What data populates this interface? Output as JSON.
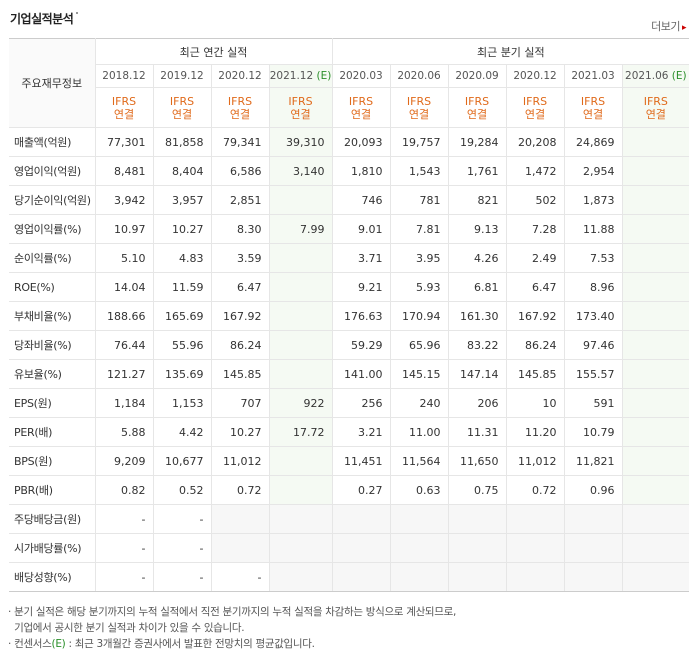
{
  "header": {
    "title": "기업실적분석",
    "more_label": "더보기"
  },
  "table": {
    "row_header_label": "주요재무정보",
    "group_annual": "최근 연간 실적",
    "group_quarter": "최근 분기 실적",
    "annual_periods": [
      "2018.12",
      "2019.12",
      "2020.12",
      "2021.12"
    ],
    "annual_est_suffix": "(E)",
    "quarter_periods": [
      "2020.03",
      "2020.06",
      "2020.09",
      "2020.12",
      "2021.03",
      "2021.06"
    ],
    "quarter_est_suffix": "(E)",
    "ifrs_top": "IFRS",
    "ifrs_bottom": "연결",
    "rows": [
      {
        "label": "매출액(억원)",
        "annual": [
          "77,301",
          "81,858",
          "79,341",
          "39,310"
        ],
        "quarter": [
          "20,093",
          "19,757",
          "19,284",
          "20,208",
          "24,869",
          ""
        ]
      },
      {
        "label": "영업이익(억원)",
        "annual": [
          "8,481",
          "8,404",
          "6,586",
          "3,140"
        ],
        "quarter": [
          "1,810",
          "1,543",
          "1,761",
          "1,472",
          "2,954",
          ""
        ]
      },
      {
        "label": "당기순이익(억원)",
        "annual": [
          "3,942",
          "3,957",
          "2,851",
          ""
        ],
        "quarter": [
          "746",
          "781",
          "821",
          "502",
          "1,873",
          ""
        ]
      },
      {
        "label": "영업이익률(%)",
        "annual": [
          "10.97",
          "10.27",
          "8.30",
          "7.99"
        ],
        "quarter": [
          "9.01",
          "7.81",
          "9.13",
          "7.28",
          "11.88",
          ""
        ]
      },
      {
        "label": "순이익률(%)",
        "annual": [
          "5.10",
          "4.83",
          "3.59",
          ""
        ],
        "quarter": [
          "3.71",
          "3.95",
          "4.26",
          "2.49",
          "7.53",
          ""
        ]
      },
      {
        "label": "ROE(%)",
        "annual": [
          "14.04",
          "11.59",
          "6.47",
          ""
        ],
        "quarter": [
          "9.21",
          "5.93",
          "6.81",
          "6.47",
          "8.96",
          ""
        ]
      },
      {
        "label": "부채비율(%)",
        "annual": [
          "188.66",
          "165.69",
          "167.92",
          ""
        ],
        "quarter": [
          "176.63",
          "170.94",
          "161.30",
          "167.92",
          "173.40",
          ""
        ]
      },
      {
        "label": "당좌비율(%)",
        "annual": [
          "76.44",
          "55.96",
          "86.24",
          ""
        ],
        "quarter": [
          "59.29",
          "65.96",
          "83.22",
          "86.24",
          "97.46",
          ""
        ]
      },
      {
        "label": "유보율(%)",
        "annual": [
          "121.27",
          "135.69",
          "145.85",
          ""
        ],
        "quarter": [
          "141.00",
          "145.15",
          "147.14",
          "145.85",
          "155.57",
          ""
        ]
      },
      {
        "label": "EPS(원)",
        "annual": [
          "1,184",
          "1,153",
          "707",
          "922"
        ],
        "quarter": [
          "256",
          "240",
          "206",
          "10",
          "591",
          ""
        ]
      },
      {
        "label": "PER(배)",
        "annual": [
          "5.88",
          "4.42",
          "10.27",
          "17.72"
        ],
        "quarter": [
          "3.21",
          "11.00",
          "11.31",
          "11.20",
          "10.79",
          ""
        ]
      },
      {
        "label": "BPS(원)",
        "annual": [
          "9,209",
          "10,677",
          "11,012",
          ""
        ],
        "quarter": [
          "11,451",
          "11,564",
          "11,650",
          "11,012",
          "11,821",
          ""
        ]
      },
      {
        "label": "PBR(배)",
        "annual": [
          "0.82",
          "0.52",
          "0.72",
          ""
        ],
        "quarter": [
          "0.27",
          "0.63",
          "0.75",
          "0.72",
          "0.96",
          ""
        ]
      },
      {
        "label": "주당배당금(원)",
        "annual": [
          "-",
          "-",
          "",
          ""
        ],
        "quarter": [
          "",
          "",
          "",
          "",
          "",
          ""
        ]
      },
      {
        "label": "시가배당률(%)",
        "annual": [
          "-",
          "-",
          "",
          ""
        ],
        "quarter": [
          "",
          "",
          "",
          "",
          "",
          ""
        ]
      },
      {
        "label": "배당성향(%)",
        "annual": [
          "-",
          "-",
          "-",
          ""
        ],
        "quarter": [
          "",
          "",
          "",
          "",
          "",
          ""
        ]
      }
    ]
  },
  "notes": {
    "line1": "분기 실적은 해당 분기까지의 누적 실적에서 직전 분기까지의 누적 실적을 차감하는 방식으로 계산되므로,",
    "line2": "기업에서 공시한 분기 실적과 차이가 있을 수 있습니다.",
    "line3_prefix": "컨센서스",
    "line3_mark": "(E)",
    "line3_rest": " : 최근 3개월간 증권사에서 발표한 전망치의 평균값입니다."
  },
  "colors": {
    "estimate_bg": "#f5faf3",
    "ifrs_text": "#e06a1b",
    "estimate_mark": "#2a8f2a"
  }
}
